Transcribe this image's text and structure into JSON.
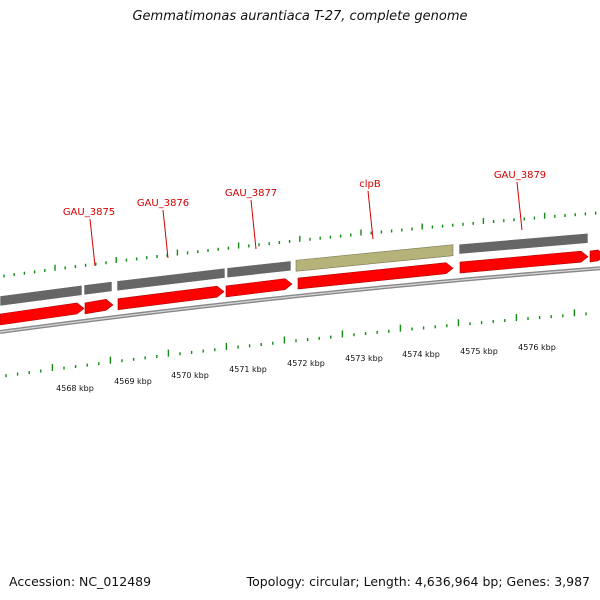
{
  "title": "Gemmatimonas aurantiaca T-27, complete genome",
  "accession": "Accession: NC_012489",
  "summary": "Topology: circular; Length: 4,636,964 bp; Genes: 3,987",
  "colors": {
    "forward_cds": "#ff0000",
    "gene_bar": "#666666",
    "highlighted_gene": "#b5b27a",
    "backbone": "#888888",
    "gene_label": "#d40000",
    "tick": "#138a13"
  },
  "gene_labels": [
    "GAU_3875",
    "GAU_3876",
    "GAU_3877",
    "clpB",
    "GAU_3879"
  ],
  "scale_labels": [
    "4568 kbp",
    "4569 kbp",
    "4570 kbp",
    "4571 kbp",
    "4572 kbp",
    "4573 kbp",
    "4574 kbp",
    "4575 kbp",
    "4576 kbp"
  ]
}
